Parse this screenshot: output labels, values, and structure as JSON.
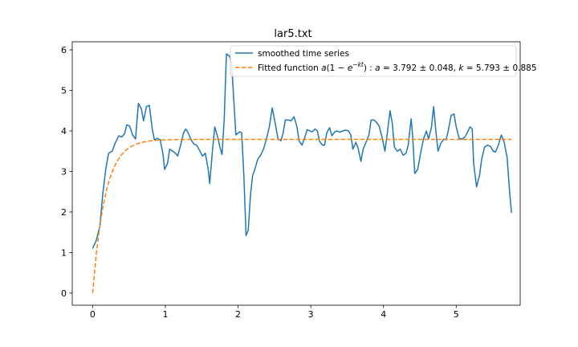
{
  "chart_data": {
    "type": "line",
    "title": "lar5.txt",
    "xlabel": "",
    "ylabel": "",
    "xlim": [
      -0.28,
      5.88
    ],
    "ylim": [
      -0.3,
      6.2
    ],
    "xticks": [
      0,
      1,
      2,
      3,
      4,
      5
    ],
    "yticks": [
      0,
      1,
      2,
      3,
      4,
      5,
      6
    ],
    "grid": false,
    "legend_position": "top-right",
    "series": [
      {
        "name": "smoothed time series",
        "color": "#1f77b4",
        "style": "solid",
        "points": [
          [
            0.0,
            1.1
          ],
          [
            0.05,
            1.3
          ],
          [
            0.1,
            1.65
          ],
          [
            0.14,
            2.45
          ],
          [
            0.18,
            3.05
          ],
          [
            0.22,
            3.45
          ],
          [
            0.27,
            3.5
          ],
          [
            0.31,
            3.7
          ],
          [
            0.36,
            3.88
          ],
          [
            0.4,
            3.85
          ],
          [
            0.44,
            3.93
          ],
          [
            0.47,
            4.15
          ],
          [
            0.51,
            4.12
          ],
          [
            0.55,
            3.9
          ],
          [
            0.59,
            3.8
          ],
          [
            0.63,
            4.68
          ],
          [
            0.67,
            4.55
          ],
          [
            0.7,
            4.25
          ],
          [
            0.74,
            4.6
          ],
          [
            0.78,
            4.63
          ],
          [
            0.82,
            4.05
          ],
          [
            0.85,
            3.78
          ],
          [
            0.89,
            3.82
          ],
          [
            0.93,
            3.78
          ],
          [
            0.97,
            3.4
          ],
          [
            0.99,
            3.05
          ],
          [
            1.03,
            3.2
          ],
          [
            1.06,
            3.55
          ],
          [
            1.1,
            3.5
          ],
          [
            1.14,
            3.45
          ],
          [
            1.17,
            3.38
          ],
          [
            1.21,
            3.65
          ],
          [
            1.25,
            3.95
          ],
          [
            1.28,
            4.05
          ],
          [
            1.31,
            3.97
          ],
          [
            1.35,
            3.8
          ],
          [
            1.39,
            3.68
          ],
          [
            1.43,
            3.65
          ],
          [
            1.47,
            3.52
          ],
          [
            1.51,
            3.38
          ],
          [
            1.55,
            3.45
          ],
          [
            1.59,
            3.05
          ],
          [
            1.61,
            2.7
          ],
          [
            1.65,
            3.55
          ],
          [
            1.68,
            4.1
          ],
          [
            1.72,
            3.85
          ],
          [
            1.75,
            3.6
          ],
          [
            1.78,
            3.42
          ],
          [
            1.81,
            4.3
          ],
          [
            1.84,
            5.9
          ],
          [
            1.88,
            5.85
          ],
          [
            1.91,
            5.7
          ],
          [
            1.94,
            4.8
          ],
          [
            1.97,
            3.9
          ],
          [
            2.0,
            3.95
          ],
          [
            2.03,
            3.98
          ],
          [
            2.05,
            3.95
          ],
          [
            2.08,
            2.9
          ],
          [
            2.11,
            1.42
          ],
          [
            2.14,
            1.55
          ],
          [
            2.17,
            2.4
          ],
          [
            2.2,
            2.9
          ],
          [
            2.23,
            3.05
          ],
          [
            2.27,
            3.3
          ],
          [
            2.31,
            3.4
          ],
          [
            2.35,
            3.55
          ],
          [
            2.39,
            3.8
          ],
          [
            2.43,
            4.1
          ],
          [
            2.47,
            4.57
          ],
          [
            2.51,
            4.2
          ],
          [
            2.55,
            3.8
          ],
          [
            2.59,
            3.76
          ],
          [
            2.62,
            3.95
          ],
          [
            2.65,
            4.27
          ],
          [
            2.69,
            4.27
          ],
          [
            2.73,
            4.25
          ],
          [
            2.77,
            4.35
          ],
          [
            2.81,
            4.1
          ],
          [
            2.84,
            3.75
          ],
          [
            2.88,
            3.65
          ],
          [
            2.92,
            3.85
          ],
          [
            2.95,
            4.03
          ],
          [
            2.99,
            4.0
          ],
          [
            3.02,
            3.98
          ],
          [
            3.06,
            4.05
          ],
          [
            3.09,
            4.0
          ],
          [
            3.12,
            3.75
          ],
          [
            3.16,
            3.65
          ],
          [
            3.19,
            3.65
          ],
          [
            3.22,
            3.95
          ],
          [
            3.26,
            4.08
          ],
          [
            3.29,
            3.88
          ],
          [
            3.33,
            3.98
          ],
          [
            3.36,
            4.0
          ],
          [
            3.4,
            3.97
          ],
          [
            3.44,
            4.0
          ],
          [
            3.48,
            4.02
          ],
          [
            3.52,
            4.0
          ],
          [
            3.55,
            3.9
          ],
          [
            3.58,
            3.55
          ],
          [
            3.62,
            3.72
          ],
          [
            3.65,
            3.58
          ],
          [
            3.69,
            3.25
          ],
          [
            3.72,
            3.55
          ],
          [
            3.76,
            3.72
          ],
          [
            3.8,
            3.9
          ],
          [
            3.83,
            4.27
          ],
          [
            3.87,
            4.27
          ],
          [
            3.91,
            4.2
          ],
          [
            3.94,
            4.12
          ],
          [
            3.98,
            3.85
          ],
          [
            4.02,
            3.5
          ],
          [
            4.06,
            4.05
          ],
          [
            4.09,
            4.5
          ],
          [
            4.12,
            4.2
          ],
          [
            4.15,
            3.6
          ],
          [
            4.19,
            3.5
          ],
          [
            4.23,
            3.55
          ],
          [
            4.27,
            3.4
          ],
          [
            4.31,
            3.45
          ],
          [
            4.34,
            3.65
          ],
          [
            4.38,
            4.3
          ],
          [
            4.4,
            3.9
          ],
          [
            4.43,
            2.95
          ],
          [
            4.47,
            3.05
          ],
          [
            4.51,
            3.45
          ],
          [
            4.55,
            3.8
          ],
          [
            4.59,
            4.0
          ],
          [
            4.62,
            3.8
          ],
          [
            4.66,
            4.1
          ],
          [
            4.69,
            4.6
          ],
          [
            4.72,
            4.0
          ],
          [
            4.75,
            3.5
          ],
          [
            4.79,
            3.7
          ],
          [
            4.83,
            3.8
          ],
          [
            4.86,
            3.78
          ],
          [
            4.89,
            4.0
          ],
          [
            4.93,
            4.38
          ],
          [
            4.97,
            4.42
          ],
          [
            5.0,
            4.1
          ],
          [
            5.04,
            3.82
          ],
          [
            5.08,
            3.8
          ],
          [
            5.12,
            3.85
          ],
          [
            5.15,
            3.95
          ],
          [
            5.19,
            4.1
          ],
          [
            5.22,
            4.05
          ],
          [
            5.24,
            3.2
          ],
          [
            5.28,
            2.62
          ],
          [
            5.32,
            2.9
          ],
          [
            5.35,
            3.3
          ],
          [
            5.39,
            3.6
          ],
          [
            5.43,
            3.65
          ],
          [
            5.47,
            3.62
          ],
          [
            5.51,
            3.5
          ],
          [
            5.54,
            3.48
          ],
          [
            5.58,
            3.65
          ],
          [
            5.62,
            3.9
          ],
          [
            5.66,
            3.72
          ],
          [
            5.7,
            3.35
          ],
          [
            5.73,
            2.6
          ],
          [
            5.76,
            1.98
          ]
        ]
      },
      {
        "name": "Fitted function",
        "color": "#ff7f0e",
        "style": "dashed",
        "function": "a(1 - e^(-kt))",
        "a": 3.792,
        "a_err": 0.048,
        "k": 5.793,
        "k_err": 0.885,
        "x_range": [
          0,
          5.76
        ]
      }
    ]
  }
}
